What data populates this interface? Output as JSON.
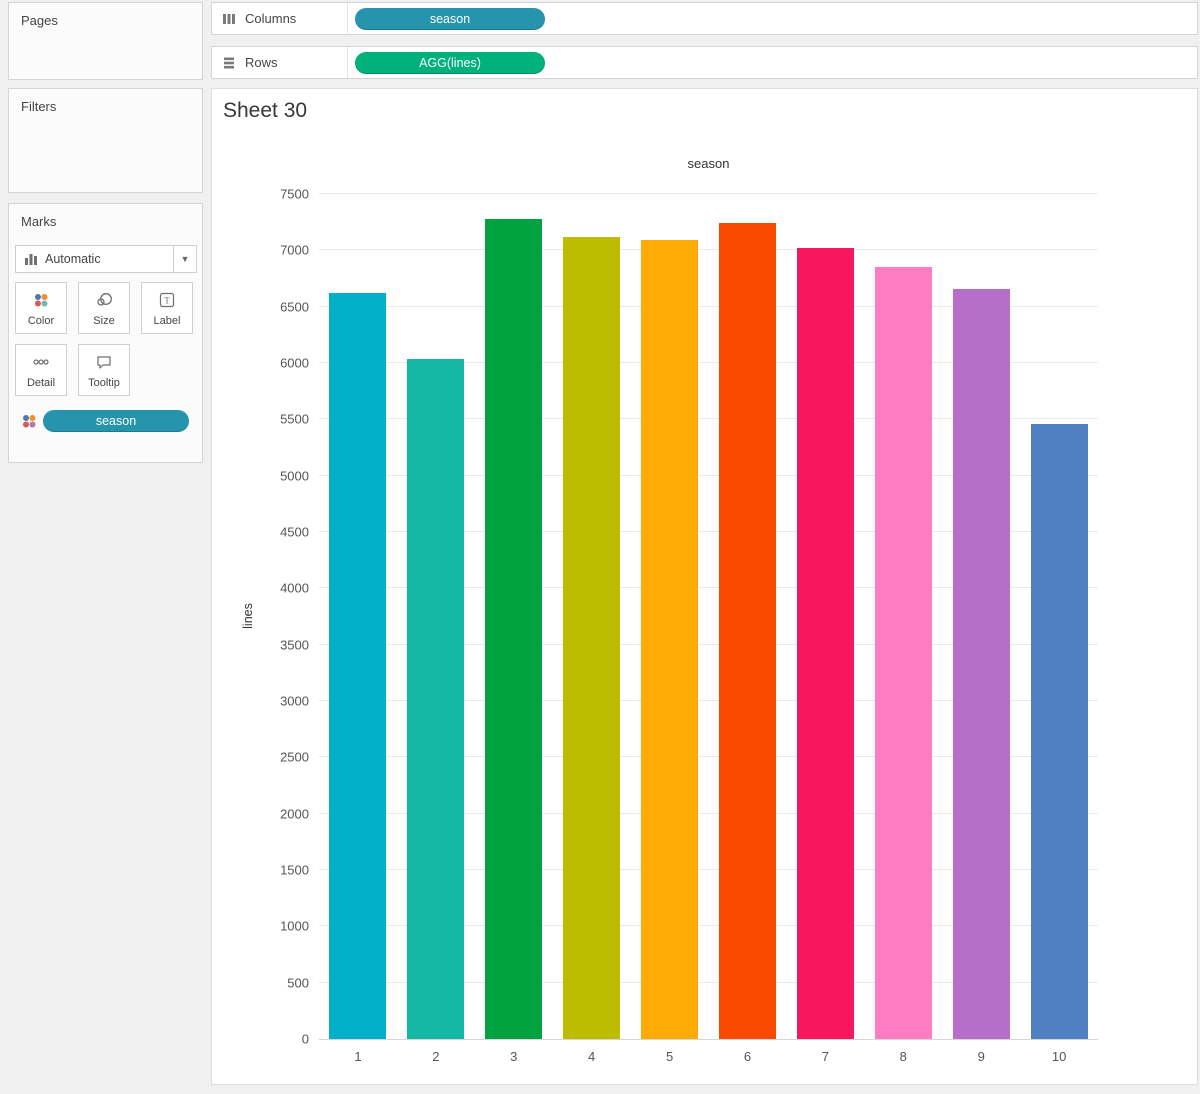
{
  "panels": {
    "pages_label": "Pages",
    "filters_label": "Filters"
  },
  "marks": {
    "label": "Marks",
    "type_selector": "Automatic",
    "buttons": [
      {
        "label": "Color"
      },
      {
        "label": "Size"
      },
      {
        "label": "Label"
      },
      {
        "label": "Detail"
      },
      {
        "label": "Tooltip"
      }
    ],
    "pill": "season"
  },
  "shelves": {
    "columns": {
      "label": "Columns",
      "pill": "season"
    },
    "rows": {
      "label": "Rows",
      "pill": "AGG(lines)"
    }
  },
  "sheet": {
    "title": "Sheet 30"
  },
  "colors": {
    "dimension_pill": "#2694ad",
    "measure_pill": "#00b17c"
  },
  "chart_data": {
    "type": "bar",
    "title": "season",
    "xlabel": "season",
    "ylabel": "lines",
    "categories": [
      "1",
      "2",
      "3",
      "4",
      "5",
      "6",
      "7",
      "8",
      "9",
      "10"
    ],
    "values": [
      6620,
      6040,
      7280,
      7120,
      7090,
      7240,
      7020,
      6855,
      6660,
      5460
    ],
    "bar_colors": [
      "#00b0c8",
      "#15b7a5",
      "#00a33f",
      "#bcbd00",
      "#ffaa05",
      "#fb4a00",
      "#f8175f",
      "#ff7cc2",
      "#b56fc8",
      "#4e80bf"
    ],
    "ylim": [
      0,
      7500
    ],
    "ytick_step": 500,
    "grid": true,
    "legend": "none"
  }
}
